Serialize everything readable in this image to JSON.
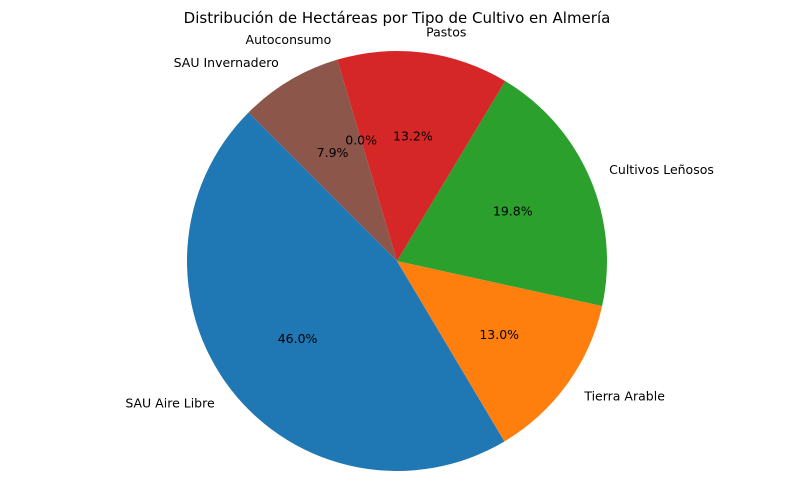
{
  "chart_data": {
    "type": "pie",
    "title": "Distribución de Hectáreas por Tipo de Cultivo en Almería",
    "start_angle_deg": 135,
    "direction": "counterclockwise",
    "slices": [
      {
        "label": "SAU Aire Libre",
        "value": 46.0,
        "pct_label": "46.0%",
        "color": "#1f77b4"
      },
      {
        "label": "Tierra Arable",
        "value": 13.0,
        "pct_label": "13.0%",
        "color": "#ff7f0e"
      },
      {
        "label": "Cultivos Leñosos",
        "value": 19.8,
        "pct_label": "19.8%",
        "color": "#2ca02c"
      },
      {
        "label": "Pastos",
        "value": 13.2,
        "pct_label": "13.2%",
        "color": "#d62728"
      },
      {
        "label": "Autoconsumo",
        "value": 0.0,
        "pct_label": "0.0%",
        "color": "#9467bd"
      },
      {
        "label": "SAU Invernadero",
        "value": 7.9,
        "pct_label": "7.9%",
        "color": "#8c564b"
      }
    ]
  }
}
